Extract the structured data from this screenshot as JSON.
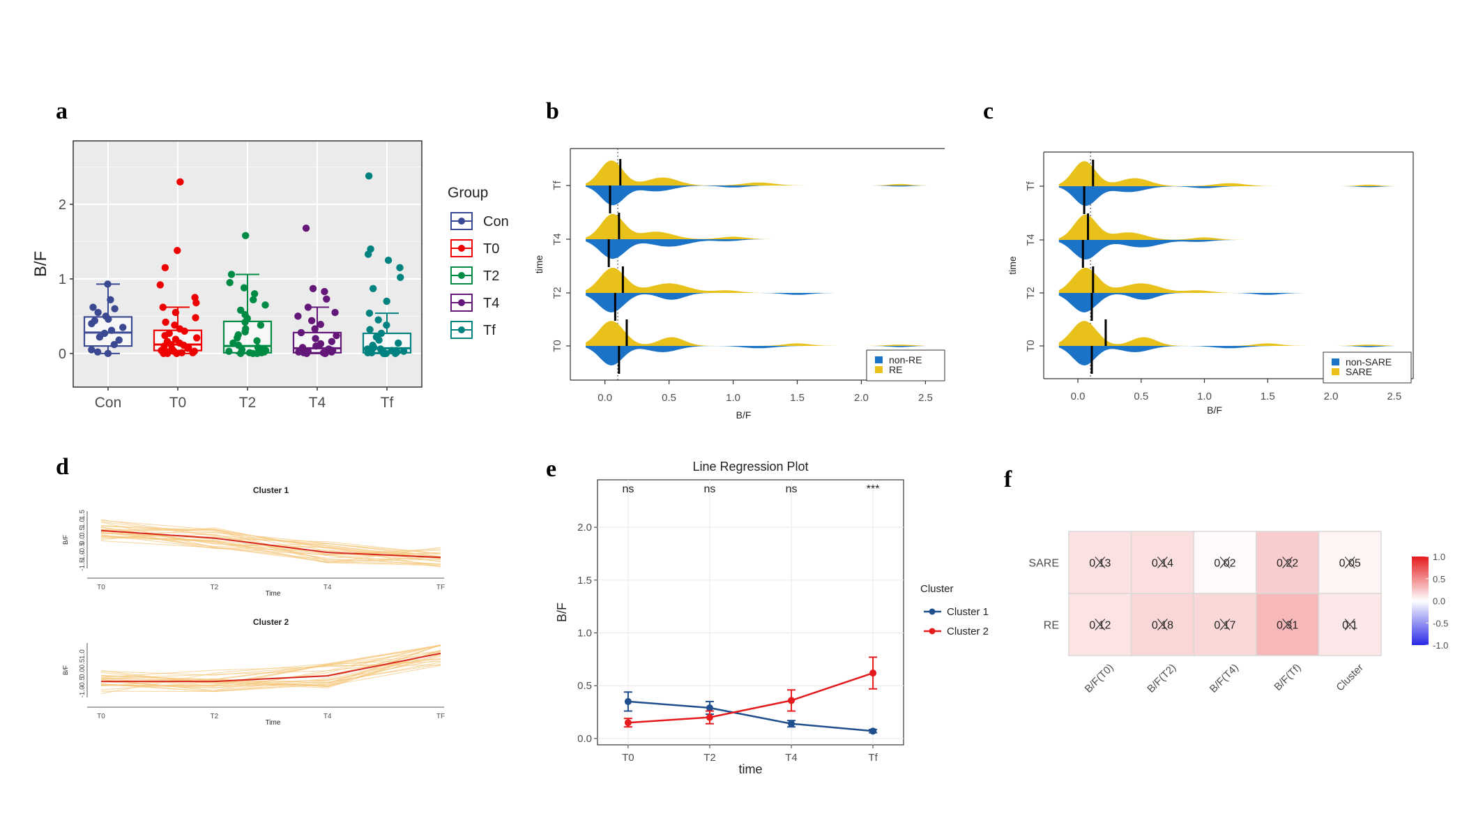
{
  "panel_letters": [
    "a",
    "b",
    "c",
    "d",
    "e",
    "f"
  ],
  "chart_data": [
    {
      "id": "a",
      "type": "box",
      "ylabel": "B/F",
      "xlabel": "",
      "categories": [
        "Con",
        "T0",
        "T2",
        "T4",
        "Tf"
      ],
      "legend_title": "Group",
      "legend_position": "right",
      "colors": [
        "#3b4992",
        "#ee0000",
        "#008b45",
        "#631879",
        "#008280"
      ],
      "ylim": [
        -0.45,
        2.85
      ],
      "yticks": [
        0,
        1,
        2
      ],
      "boxes": [
        {
          "q1": 0.1,
          "median": 0.28,
          "q3": 0.49,
          "wlow": 0.0,
          "whigh": 0.93
        },
        {
          "q1": 0.04,
          "median": 0.12,
          "q3": 0.31,
          "wlow": 0.0,
          "whigh": 0.62
        },
        {
          "q1": 0.01,
          "median": 0.1,
          "q3": 0.43,
          "wlow": 0.0,
          "whigh": 1.06
        },
        {
          "q1": 0.01,
          "median": 0.07,
          "q3": 0.28,
          "wlow": 0.0,
          "whigh": 0.62
        },
        {
          "q1": 0.01,
          "median": 0.07,
          "q3": 0.27,
          "wlow": 0.0,
          "whigh": 0.54
        }
      ],
      "points": [
        [
          0.93,
          0.72,
          0.62,
          0.55,
          0.5,
          0.46,
          0.4,
          0.35,
          0.31,
          0.27,
          0.22,
          0.18,
          0.12,
          0.05,
          0.0,
          0.02,
          0.6,
          0.44
        ],
        [
          2.3,
          1.38,
          1.15,
          0.92,
          0.75,
          0.68,
          0.62,
          0.55,
          0.48,
          0.42,
          0.38,
          0.33,
          0.3,
          0.27,
          0.24,
          0.21,
          0.19,
          0.16,
          0.14,
          0.12,
          0.1,
          0.08,
          0.06,
          0.05,
          0.04,
          0.03,
          0.02,
          0.01,
          0.0,
          0.0,
          0.01,
          0.03,
          0.07,
          0.11,
          0.0,
          0.02
        ],
        [
          1.58,
          1.06,
          0.95,
          0.88,
          0.8,
          0.72,
          0.65,
          0.58,
          0.52,
          0.47,
          0.42,
          0.38,
          0.33,
          0.29,
          0.25,
          0.21,
          0.17,
          0.14,
          0.11,
          0.08,
          0.06,
          0.04,
          0.02,
          0.01,
          0.0,
          0.0,
          0.01,
          0.03,
          0.0,
          0.05
        ],
        [
          1.68,
          0.87,
          0.83,
          0.73,
          0.62,
          0.55,
          0.5,
          0.44,
          0.39,
          0.33,
          0.28,
          0.24,
          0.2,
          0.16,
          0.13,
          0.1,
          0.08,
          0.06,
          0.04,
          0.03,
          0.02,
          0.01,
          0.0,
          0.0,
          0.01,
          0.02,
          0.0,
          0.05,
          0.03
        ],
        [
          2.38,
          1.4,
          1.33,
          1.25,
          1.15,
          1.02,
          0.87,
          0.7,
          0.54,
          0.45,
          0.38,
          0.32,
          0.27,
          0.22,
          0.18,
          0.14,
          0.11,
          0.08,
          0.06,
          0.04,
          0.03,
          0.02,
          0.01,
          0.0,
          0.0,
          0.01,
          0.02,
          0.0,
          0.04,
          0.06,
          0.03,
          0.0
        ]
      ]
    },
    {
      "id": "b",
      "type": "split-density",
      "xlabel": "B/F",
      "ylabel": "time",
      "categories": [
        "T0",
        "T2",
        "T4",
        "Tf"
      ],
      "xlim": [
        -0.27,
        2.65
      ],
      "xticks": [
        0.0,
        0.5,
        1.0,
        1.5,
        2.0,
        2.5
      ],
      "reference_line": 0.1,
      "legend_position": "bottom-right",
      "series": [
        {
          "name": "non-RE",
          "color": "#1a73c7",
          "medians": [
            0.11,
            0.08,
            0.03,
            0.04
          ]
        },
        {
          "name": "RE",
          "color": "#e8c11a",
          "medians": [
            0.17,
            0.14,
            0.11,
            0.12
          ]
        }
      ]
    },
    {
      "id": "c",
      "type": "split-density",
      "xlabel": "B/F",
      "ylabel": "time",
      "categories": [
        "T0",
        "T2",
        "T4",
        "Tf"
      ],
      "xlim": [
        -0.27,
        2.65
      ],
      "xticks": [
        0.0,
        0.5,
        1.0,
        1.5,
        2.0,
        2.5
      ],
      "reference_line": 0.1,
      "legend_position": "bottom-right",
      "series": [
        {
          "name": "non-SARE",
          "color": "#1a73c7",
          "medians": [
            0.11,
            0.11,
            0.04,
            0.05
          ]
        },
        {
          "name": "SARE",
          "color": "#e8c11a",
          "medians": [
            0.22,
            0.12,
            0.08,
            0.12
          ]
        }
      ]
    },
    {
      "id": "d",
      "type": "line",
      "subplots": [
        {
          "title": "Cluster 1",
          "xlabel": "Time",
          "ylabel": "B/F",
          "x": [
            "T0",
            "T2",
            "T4",
            "TF"
          ],
          "yticks": [
            -1.5,
            -1.0,
            -0.5,
            0.0,
            0.5,
            1.0,
            1.5
          ],
          "ylim": [
            -1.7,
            1.7
          ],
          "mean": [
            0.55,
            0.1,
            -0.75,
            -1.05
          ]
        },
        {
          "title": "Cluster 2",
          "xlabel": "Time",
          "ylabel": "B/F",
          "x": [
            "T0",
            "T2",
            "T4",
            "TF"
          ],
          "yticks": [
            -1.0,
            -0.5,
            0.0,
            0.5,
            1.0
          ],
          "ylim": [
            -1.3,
            1.6
          ],
          "mean": [
            -0.45,
            -0.45,
            -0.15,
            1.05
          ]
        }
      ]
    },
    {
      "id": "e",
      "type": "line",
      "title": "Line Regression Plot",
      "xlabel": "time",
      "ylabel": "B/F",
      "categories": [
        "T0",
        "T2",
        "T4",
        "Tf"
      ],
      "ylim": [
        -0.06,
        2.45
      ],
      "yticks": [
        0.0,
        0.5,
        1.0,
        1.5,
        2.0
      ],
      "significance": [
        "ns",
        "ns",
        "ns",
        "***"
      ],
      "legend_title": "Cluster",
      "legend_position": "right",
      "series": [
        {
          "name": "Cluster 1",
          "color": "#1f4e8c",
          "values": [
            0.35,
            0.29,
            0.14,
            0.07
          ],
          "err": [
            0.09,
            0.06,
            0.03,
            0.015
          ]
        },
        {
          "name": "Cluster 2",
          "color": "#e41a1c",
          "values": [
            0.15,
            0.2,
            0.36,
            0.62
          ],
          "err": [
            0.04,
            0.06,
            0.1,
            0.15
          ]
        }
      ]
    },
    {
      "id": "f",
      "type": "heatmap",
      "rows": [
        "SARE",
        "RE"
      ],
      "columns": [
        "B/F(T0)",
        "B/F(T2)",
        "B/F(T4)",
        "B/F(Tf)",
        "Cluster"
      ],
      "values": [
        [
          0.13,
          0.14,
          0.02,
          0.22,
          0.05
        ],
        [
          0.12,
          0.18,
          0.17,
          0.31,
          0.1
        ]
      ],
      "labels": [
        [
          "0.13",
          "0.14",
          "0.02",
          "0.22",
          "0.05"
        ],
        [
          "0.12",
          "0.18",
          "0.17",
          "0.31",
          "0.1"
        ]
      ],
      "colorbar_ticks": [
        1.0,
        0.5,
        0.0,
        -0.5,
        -1.0
      ],
      "colorbar_labels": [
        "1.0",
        "0.5",
        "0.0",
        "-0.5",
        "-1.0"
      ]
    }
  ]
}
